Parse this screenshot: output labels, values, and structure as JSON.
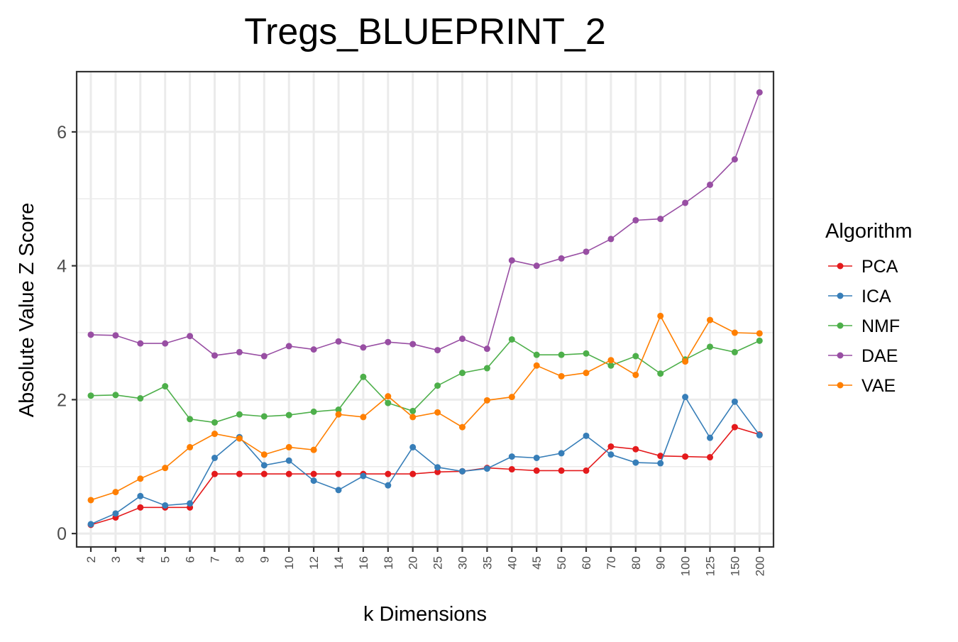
{
  "chart_data": {
    "type": "line",
    "title": "Tregs_BLUEPRINT_2",
    "xlabel": "k Dimensions",
    "ylabel": "Absolute Value Z Score",
    "legend_title": "Algorithm",
    "legend_position": "right",
    "grid": true,
    "ylim": [
      -0.2,
      6.9
    ],
    "y_ticks": [
      0,
      2,
      4,
      6
    ],
    "categories": [
      "2",
      "3",
      "4",
      "5",
      "6",
      "7",
      "8",
      "9",
      "10",
      "12",
      "14",
      "16",
      "18",
      "20",
      "25",
      "30",
      "35",
      "40",
      "45",
      "50",
      "60",
      "70",
      "80",
      "90",
      "100",
      "125",
      "150",
      "200"
    ],
    "series": [
      {
        "name": "PCA",
        "color": "#E41A1C",
        "values": [
          0.13,
          0.24,
          0.39,
          0.39,
          0.39,
          0.89,
          0.89,
          0.89,
          0.89,
          0.89,
          0.89,
          0.89,
          0.89,
          0.89,
          0.92,
          0.93,
          0.98,
          0.96,
          0.94,
          0.94,
          0.94,
          1.3,
          1.26,
          1.16,
          1.15,
          1.14,
          1.59,
          1.48
        ]
      },
      {
        "name": "ICA",
        "color": "#377EB8",
        "values": [
          0.14,
          0.3,
          0.56,
          0.42,
          0.45,
          1.13,
          1.44,
          1.02,
          1.09,
          0.79,
          0.65,
          0.86,
          0.72,
          1.29,
          0.99,
          0.93,
          0.97,
          1.15,
          1.13,
          1.2,
          1.46,
          1.18,
          1.06,
          1.05,
          2.04,
          1.43,
          1.97,
          1.47
        ]
      },
      {
        "name": "NMF",
        "color": "#4DAF4A",
        "values": [
          2.06,
          2.07,
          2.02,
          2.2,
          1.71,
          1.66,
          1.78,
          1.75,
          1.77,
          1.82,
          1.85,
          2.34,
          1.95,
          1.83,
          2.21,
          2.4,
          2.47,
          2.9,
          2.67,
          2.67,
          2.69,
          2.51,
          2.65,
          2.39,
          2.6,
          2.79,
          2.71,
          2.88
        ]
      },
      {
        "name": "DAE",
        "color": "#984EA3",
        "values": [
          2.97,
          2.96,
          2.84,
          2.84,
          2.95,
          2.66,
          2.71,
          2.65,
          2.8,
          2.75,
          2.87,
          2.78,
          2.86,
          2.83,
          2.74,
          2.91,
          2.76,
          4.08,
          4.0,
          4.11,
          4.21,
          4.4,
          4.68,
          4.7,
          4.94,
          5.21,
          5.59,
          6.59
        ]
      },
      {
        "name": "VAE",
        "color": "#FF7F00",
        "values": [
          0.5,
          0.62,
          0.82,
          0.98,
          1.29,
          1.49,
          1.42,
          1.18,
          1.29,
          1.25,
          1.78,
          1.74,
          2.05,
          1.74,
          1.81,
          1.59,
          1.99,
          2.04,
          2.51,
          2.35,
          2.4,
          2.59,
          2.37,
          3.25,
          2.57,
          3.19,
          3.0,
          2.99
        ]
      }
    ]
  }
}
